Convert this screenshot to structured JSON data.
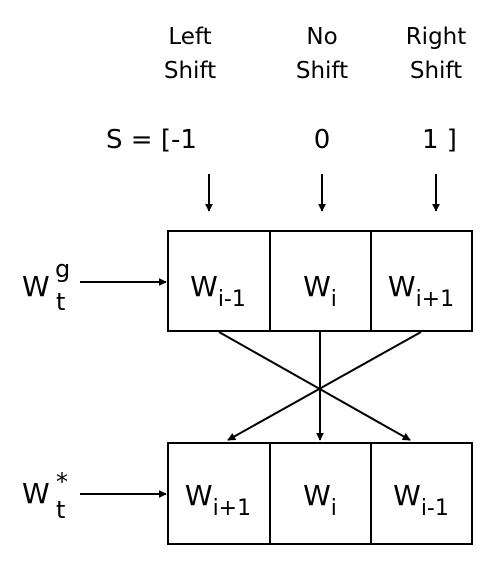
{
  "headers": {
    "left": [
      "Left",
      "Shift"
    ],
    "none": [
      "No",
      "Shift"
    ],
    "right": [
      "Right",
      "Shift"
    ]
  },
  "shift_vector": {
    "label": "S = [-1",
    "middle": "0",
    "end": "1 ]"
  },
  "input_gated": {
    "base": "W",
    "sup": "g",
    "sub": "t"
  },
  "input_shifted": {
    "base": "W",
    "sup": "*",
    "sub": "t"
  },
  "top_row": [
    {
      "base": "W",
      "sub": "i-1"
    },
    {
      "base": "W",
      "sub": "i"
    },
    {
      "base": "W",
      "sub": "i+1"
    }
  ],
  "bottom_row": [
    {
      "base": "W",
      "sub": "i+1"
    },
    {
      "base": "W",
      "sub": "i"
    },
    {
      "base": "W",
      "sub": "i-1"
    }
  ]
}
